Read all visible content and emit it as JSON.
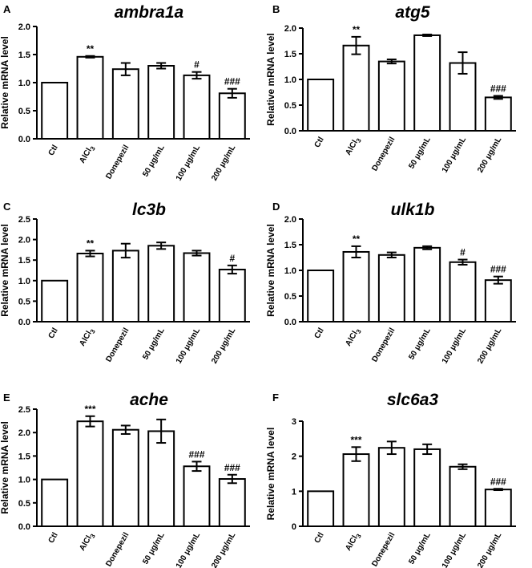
{
  "chart_data": [
    {
      "panel": "A",
      "type": "bar",
      "title": "ambra1a",
      "ylabel": "Relative mRNA level",
      "ylim": [
        0,
        2.0
      ],
      "yticks": [
        "0.0",
        "0.5",
        "1.0",
        "1.5",
        "2.0"
      ],
      "categories": [
        "Ctl",
        "AlCl3",
        "Donepezil",
        "50 μg/mL",
        "100 μg/mL",
        "200 μg/mL"
      ],
      "values": [
        1.0,
        1.46,
        1.24,
        1.3,
        1.13,
        0.81
      ],
      "errors": [
        0.0,
        0.015,
        0.11,
        0.05,
        0.06,
        0.08
      ],
      "annotations": [
        "",
        "**",
        "",
        "",
        "#",
        "###"
      ]
    },
    {
      "panel": "B",
      "type": "bar",
      "title": "atg5",
      "ylabel": "Relative mRNA level",
      "ylim": [
        0,
        2.0
      ],
      "yticks": [
        "0.0",
        "0.5",
        "1.0",
        "1.5",
        "2.0"
      ],
      "categories": [
        "Ctl",
        "AlCl3",
        "Donepezil",
        "50 μg/mL",
        "100 μg/mL",
        "200 μg/mL"
      ],
      "values": [
        1.0,
        1.66,
        1.35,
        1.86,
        1.32,
        0.65
      ],
      "errors": [
        0.0,
        0.17,
        0.04,
        0.015,
        0.21,
        0.03
      ],
      "annotations": [
        "",
        "**",
        "",
        "",
        "",
        "###"
      ]
    },
    {
      "panel": "C",
      "type": "bar",
      "title": "lc3b",
      "ylabel": "Relative mRNA level",
      "ylim": [
        0,
        2.5
      ],
      "yticks": [
        "0.0",
        "0.5",
        "1.0",
        "1.5",
        "2.0",
        "2.5"
      ],
      "categories": [
        "Ctl",
        "AlCl3",
        "Donepezil",
        "50 μg/mL",
        "100 μg/mL",
        "200 μg/mL"
      ],
      "values": [
        1.0,
        1.66,
        1.73,
        1.85,
        1.67,
        1.27
      ],
      "errors": [
        0.0,
        0.07,
        0.17,
        0.08,
        0.06,
        0.1
      ],
      "annotations": [
        "",
        "**",
        "",
        "",
        "",
        "#"
      ]
    },
    {
      "panel": "D",
      "type": "bar",
      "title": "ulk1b",
      "ylabel": "Relative mRNA level",
      "ylim": [
        0,
        2.0
      ],
      "yticks": [
        "0.0",
        "0.5",
        "1.0",
        "1.5",
        "2.0"
      ],
      "categories": [
        "Ctl",
        "AlCl3",
        "Donepezil",
        "50 μg/mL",
        "100 μg/mL",
        "200 μg/mL"
      ],
      "values": [
        1.0,
        1.36,
        1.3,
        1.44,
        1.16,
        0.81
      ],
      "errors": [
        0.0,
        0.11,
        0.05,
        0.03,
        0.05,
        0.07
      ],
      "annotations": [
        "",
        "**",
        "",
        "",
        "#",
        "###"
      ]
    },
    {
      "panel": "E",
      "type": "bar",
      "title": "ache",
      "ylabel": "Relative mRNA level",
      "ylim": [
        0,
        2.5
      ],
      "yticks": [
        "0.0",
        "0.5",
        "1.0",
        "1.5",
        "2.0",
        "2.5"
      ],
      "categories": [
        "Ctl",
        "AlCl3",
        "Donepezil",
        "50 μg/mL",
        "100 μg/mL",
        "200 μg/mL"
      ],
      "values": [
        1.0,
        2.24,
        2.06,
        2.03,
        1.28,
        1.01
      ],
      "errors": [
        0.0,
        0.11,
        0.09,
        0.25,
        0.1,
        0.09
      ],
      "annotations": [
        "",
        "***",
        "",
        "",
        "###",
        "###"
      ]
    },
    {
      "panel": "F",
      "type": "bar",
      "title": "slc6a3",
      "ylabel": "Relative mRNA level",
      "ylim": [
        0,
        3
      ],
      "yticks": [
        "0",
        "1",
        "2",
        "3"
      ],
      "categories": [
        "Ctl",
        "AlCl3",
        "Donepezil",
        "50 μg/mL",
        "100 μg/mL",
        "200 μg/mL"
      ],
      "values": [
        1.0,
        2.06,
        2.24,
        2.2,
        1.7,
        1.05
      ],
      "errors": [
        0.0,
        0.2,
        0.18,
        0.14,
        0.07,
        0.02
      ],
      "annotations": [
        "",
        "***",
        "",
        "",
        "",
        "###"
      ]
    }
  ]
}
